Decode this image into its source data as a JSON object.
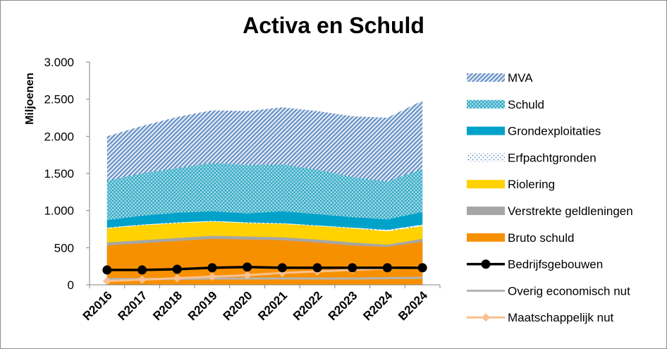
{
  "chart_data": {
    "type": "area",
    "title": "Activa en Schuld",
    "ylabel": "Miljoenen",
    "xlabel": "",
    "ylim": [
      0,
      3000
    ],
    "yticks": [
      0,
      500,
      1000,
      1500,
      2000,
      2500,
      3000
    ],
    "ytick_labels": [
      "0",
      "500",
      "1.000",
      "1.500",
      "2.000",
      "2.500",
      "3.000"
    ],
    "categories": [
      "R2016",
      "R2017",
      "R2018",
      "R2019",
      "R2020",
      "R2021",
      "R2022",
      "R2023",
      "R2024",
      "B2024"
    ],
    "grid": false,
    "legend_position": "right",
    "area_series": [
      {
        "name": "MVA",
        "color": "#4f81bd",
        "pattern": "diagonal-hatch",
        "values": [
          2000,
          2140,
          2260,
          2350,
          2340,
          2390,
          2340,
          2270,
          2250,
          2480
        ]
      },
      {
        "name": "Schuld",
        "color": "#31a9c5",
        "pattern": "crosshatch",
        "values": [
          1400,
          1500,
          1570,
          1640,
          1610,
          1620,
          1550,
          1450,
          1390,
          1560
        ]
      },
      {
        "name": "Grondexploitaties",
        "color": "#00a2c9",
        "pattern": "solid",
        "values": [
          870,
          930,
          970,
          990,
          960,
          990,
          950,
          910,
          880,
          980
        ]
      },
      {
        "name": "Erfpachtgronden",
        "color": "#7fa6d6",
        "pattern": "dots",
        "values": [
          770,
          810,
          840,
          860,
          840,
          830,
          800,
          770,
          740,
          810
        ]
      },
      {
        "name": "Riolering",
        "color": "#ffd200",
        "pattern": "solid",
        "values": [
          760,
          800,
          830,
          850,
          830,
          820,
          790,
          760,
          720,
          790
        ]
      },
      {
        "name": "Verstrekte geldleningen",
        "color": "#a6a6a6",
        "pattern": "solid",
        "values": [
          570,
          600,
          630,
          660,
          650,
          640,
          610,
          570,
          540,
          620
        ]
      },
      {
        "name": "Bruto schuld",
        "color": "#f79000",
        "pattern": "solid",
        "values": [
          530,
          560,
          590,
          620,
          610,
          600,
          570,
          530,
          510,
          580
        ]
      }
    ],
    "line_series": [
      {
        "name": "Bedrijfsgebouwen",
        "color": "#000000",
        "marker": "circle",
        "values": [
          200,
          200,
          210,
          230,
          240,
          230,
          230,
          230,
          230,
          230
        ]
      },
      {
        "name": "Overig economisch nut",
        "color": "#b3b3b3",
        "marker": "none",
        "values": [
          80,
          80,
          80,
          85,
          85,
          85,
          85,
          85,
          90,
          95
        ]
      },
      {
        "name": "Maatschappelijk nut",
        "color": "#fac090",
        "marker": "diamond",
        "values": [
          50,
          70,
          90,
          110,
          130,
          160,
          180,
          200,
          220,
          240
        ]
      }
    ]
  }
}
